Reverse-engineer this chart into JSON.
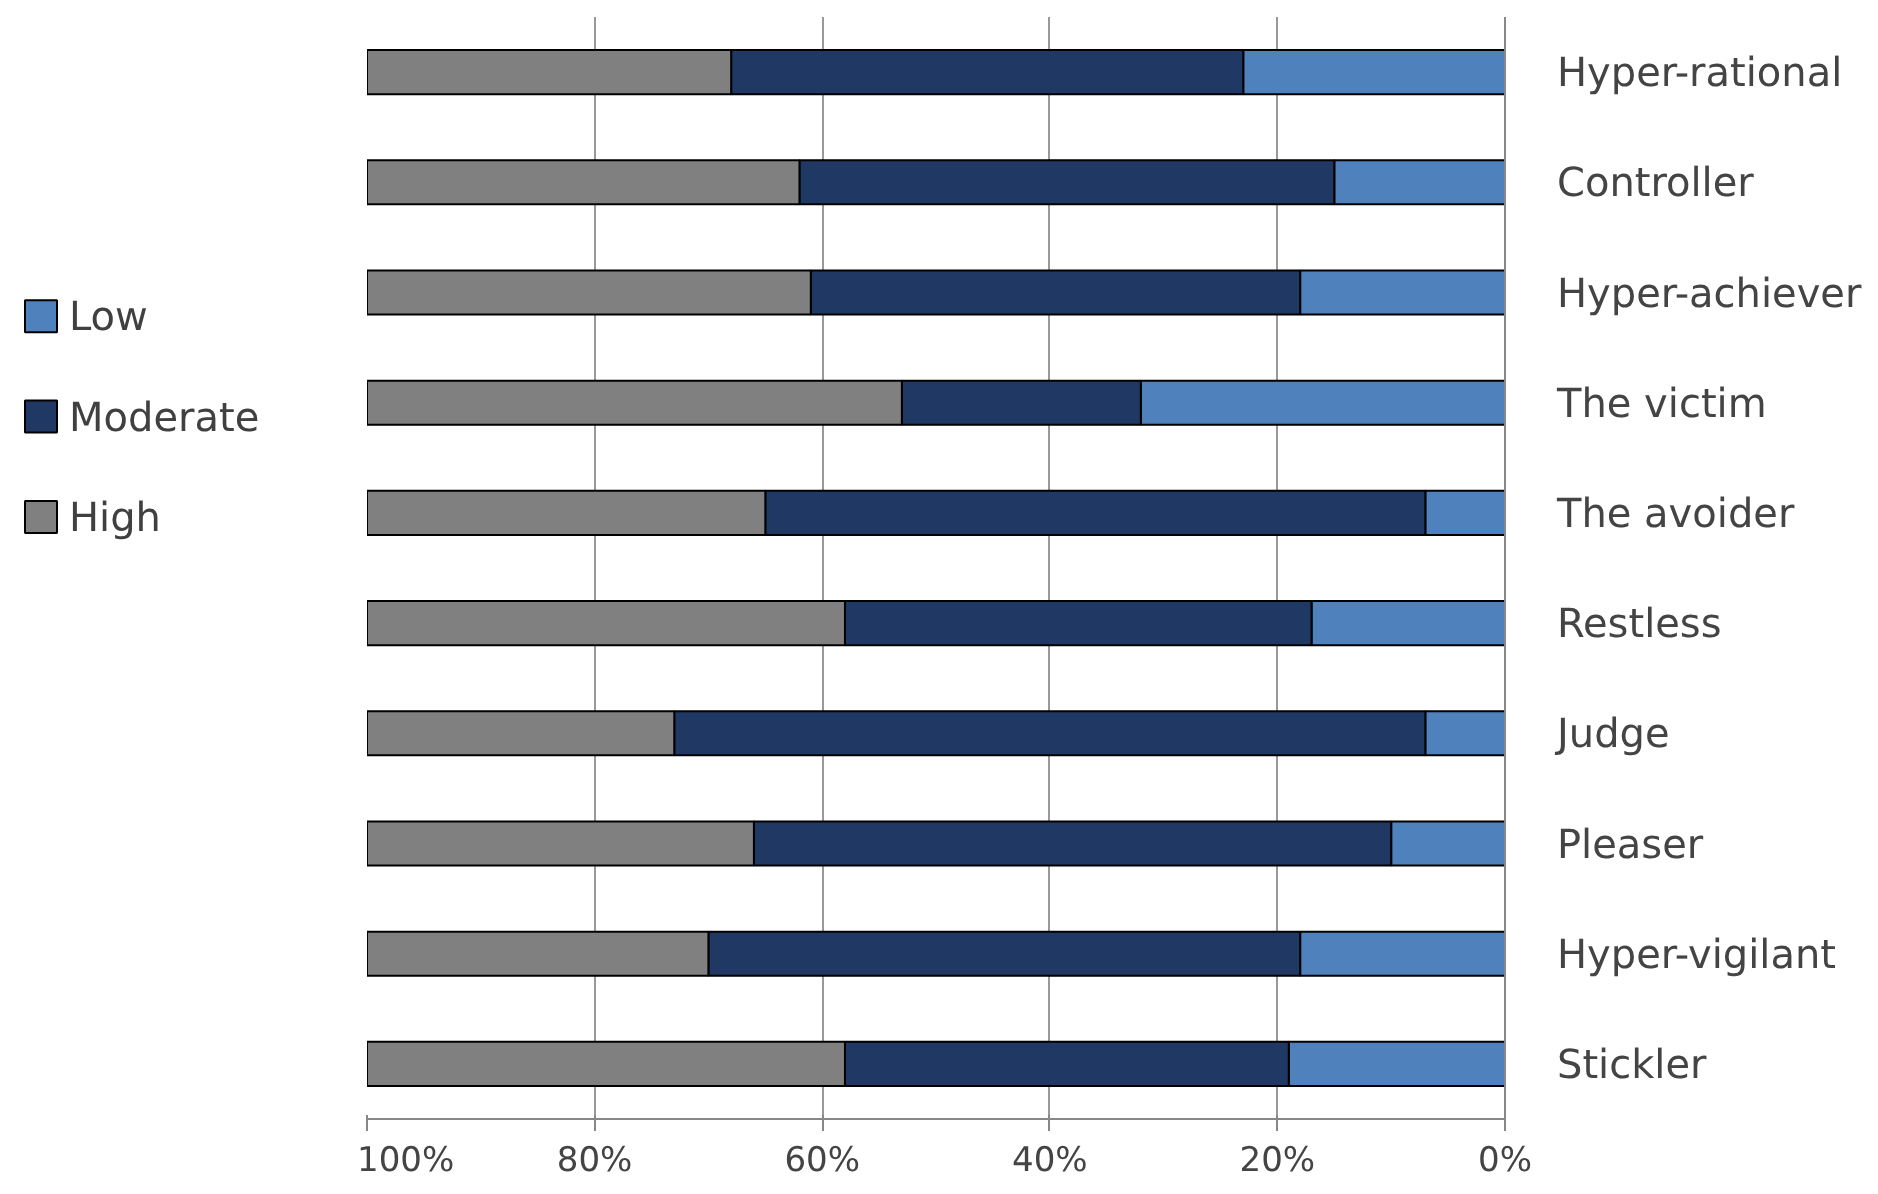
{
  "chart_data": {
    "type": "bar",
    "orientation": "horizontal",
    "stacked": true,
    "categories": [
      "Hyper-rational",
      "Controller",
      "Hyper-achiever",
      "The victim",
      "The avoider",
      "Restless",
      "Judge",
      "Pleaser",
      "Hyper-vigilant",
      "Stickler"
    ],
    "series": [
      {
        "name": "Low",
        "color": "#4f81bd",
        "values": [
          23,
          15,
          18,
          32,
          7,
          17,
          7,
          10,
          18,
          19
        ]
      },
      {
        "name": "Moderate",
        "color": "#1f3864",
        "values": [
          45,
          47,
          43,
          21,
          58,
          41,
          66,
          56,
          52,
          39
        ]
      },
      {
        "name": "High",
        "color": "#808080",
        "values": [
          32,
          38,
          39,
          47,
          35,
          42,
          27,
          34,
          30,
          42
        ]
      }
    ],
    "xlim": [
      100,
      0
    ],
    "xticks": [
      {
        "value": 100,
        "label": "100%"
      },
      {
        "value": 80,
        "label": "80%"
      },
      {
        "value": 60,
        "label": "60%"
      },
      {
        "value": 40,
        "label": "40%"
      },
      {
        "value": 20,
        "label": "20%"
      },
      {
        "value": 0,
        "label": "0%"
      }
    ],
    "grid": "x",
    "legend": "left"
  }
}
